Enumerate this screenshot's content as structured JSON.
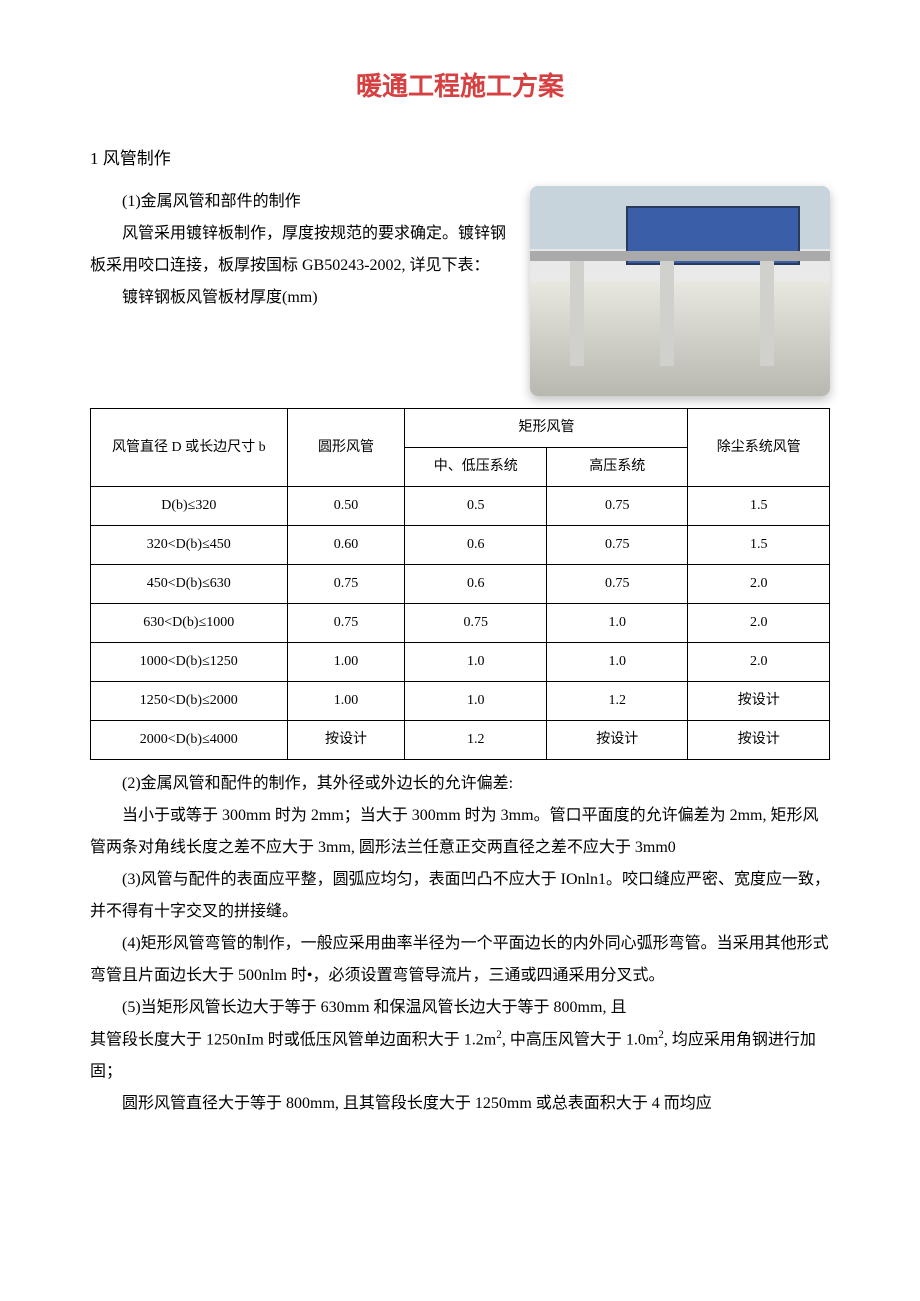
{
  "title": "暖通工程施工方案",
  "section1_heading": "1 风管制作",
  "p1": "(1)金属风管和部件的制作",
  "p2": "风管采用镀锌板制作，厚度按规范的要求确定。镀锌钢板采用咬口连接，板厚按国标 GB50243-2002, 详见下表：",
  "p3": "镀锌钢板风管板材厚度(mm)",
  "table": {
    "headers": {
      "size": "风管直径 D 或长边尺寸 b",
      "round": "圆形风管",
      "rect": "矩形风管",
      "rect_low": "中、低压系统",
      "rect_high": "高压系统",
      "dust": "除尘系统风管"
    },
    "rows": [
      {
        "size": "D(b)≤320",
        "round": "0.50",
        "low": "0.5",
        "high": "0.75",
        "dust": "1.5"
      },
      {
        "size": "320<D(b)≤450",
        "round": "0.60",
        "low": "0.6",
        "high": "0.75",
        "dust": "1.5"
      },
      {
        "size": "450<D(b)≤630",
        "round": "0.75",
        "low": "0.6",
        "high": "0.75",
        "dust": "2.0"
      },
      {
        "size": "630<D(b)≤1000",
        "round": "0.75",
        "low": "0.75",
        "high": "1.0",
        "dust": "2.0"
      },
      {
        "size": "1000<D(b)≤1250",
        "round": "1.00",
        "low": "1.0",
        "high": "1.0",
        "dust": "2.0"
      },
      {
        "size": "1250<D(b)≤2000",
        "round": "1.00",
        "low": "1.0",
        "high": "1.2",
        "dust": "按设计"
      },
      {
        "size": "2000<D(b)≤4000",
        "round": "按设计",
        "low": "1.2",
        "high": "按设计",
        "dust": "按设计"
      }
    ]
  },
  "p4": "(2)金属风管和配件的制作，其外径或外边长的允许偏差:",
  "p5": "当小于或等于 300mm 时为 2mm；当大于 300mm 时为 3mm。管口平面度的允许偏差为 2mm, 矩形风管两条对角线长度之差不应大于 3mm, 圆形法兰任意正交两直径之差不应大于 3mm0",
  "p6": "(3)风管与配件的表面应平整，圆弧应均匀，表面凹凸不应大于 IOnln1。咬口缝应严密、宽度应一致，并不得有十字交叉的拼接缝。",
  "p7": "(4)矩形风管弯管的制作，一般应采用曲率半径为一个平面边长的内外同心弧形弯管。当采用其他形式弯管且片面边长大于 500nlm 时•，必须设置弯管导流片，三通或四通采用分叉式。",
  "p8": "(5)当矩形风管长边大于等于 630mm 和保温风管长边大于等于 800mm, 且",
  "p9a": "其管段长度大于 1250nIm 时或低压风管单边面积大于 1.2m",
  "p9b": ", 中高压风管大于 1.0m",
  "p9c": ", 均应采用角钢进行加固；",
  "p10": "圆形风管直径大于等于 800mm, 且其管段长度大于 1250mm 或总表面积大于 4 而均应",
  "sup2": "2"
}
